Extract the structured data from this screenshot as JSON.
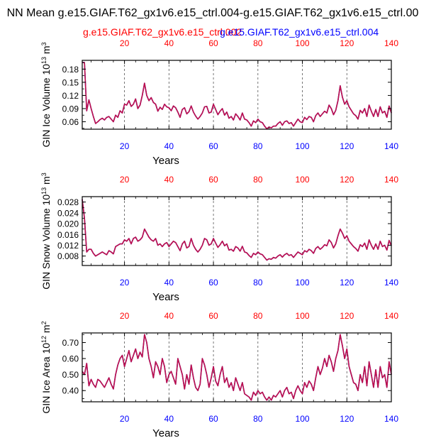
{
  "title": "NN Mean g.e15.GIAF.T62_gx1v6.e15_ctrl.004-g.e15.GIAF.T62_gx1v6.e15_ctrl.00",
  "legend": {
    "red_case": "g.e15.GIAF.T62_gx1v6.e15_ctrl.002",
    "blue_case": "g.e15.GIAF.T62_gx1v6.e15_ctrl.004"
  },
  "colors": {
    "red": "#ff0000",
    "blue": "#0000ff",
    "line_red": "#e00000",
    "line_blue": "#1a1aff",
    "line_mix": "#c8103f"
  },
  "chart_data": [
    {
      "type": "line",
      "name": "gin-ice-volume",
      "ylabel": "GIN Ice Volume 10",
      "ylabel_exp": "13",
      "ylabel_unit": "m",
      "ylabel_unit_exp": "3",
      "xlabel": "Years",
      "xlim": [
        1,
        140
      ],
      "ylim": [
        0.043,
        0.2
      ],
      "yticks": [
        "0.06",
        "0.09",
        "0.12",
        "0.15",
        "0.18"
      ],
      "ytick_values": [
        0.06,
        0.09,
        0.12,
        0.15,
        0.18
      ],
      "xticks_bottom": [
        "20",
        "40",
        "60",
        "80",
        "100",
        "120",
        "140"
      ],
      "xticks_top": [
        "20",
        "40",
        "60",
        "80",
        "100",
        "120",
        "140"
      ],
      "xtick_values": [
        20,
        40,
        60,
        80,
        100,
        120,
        140
      ],
      "series": [
        {
          "name": "g.e15.GIAF.T62_gx1v6.e15_ctrl.002",
          "values": [
            0.195,
            0.195,
            0.085,
            0.11,
            0.09,
            0.072,
            0.056,
            0.06,
            0.065,
            0.068,
            0.064,
            0.07,
            0.072,
            0.066,
            0.06,
            0.075,
            0.07,
            0.085,
            0.08,
            0.1,
            0.098,
            0.108,
            0.095,
            0.1,
            0.112,
            0.09,
            0.098,
            0.12,
            0.148,
            0.12,
            0.108,
            0.115,
            0.104,
            0.1,
            0.084,
            0.093,
            0.088,
            0.1,
            0.094,
            0.092,
            0.085,
            0.096,
            0.092,
            0.082,
            0.07,
            0.088,
            0.092,
            0.078,
            0.083,
            0.096,
            0.082,
            0.073,
            0.066,
            0.072,
            0.08,
            0.094,
            0.095,
            0.08,
            0.082,
            0.1,
            0.088,
            0.076,
            0.084,
            0.09,
            0.075,
            0.082,
            0.068,
            0.072,
            0.064,
            0.078,
            0.072,
            0.064,
            0.08,
            0.066,
            0.064,
            0.058,
            0.05,
            0.062,
            0.058,
            0.066,
            0.06,
            0.058,
            0.05,
            0.044,
            0.048,
            0.046,
            0.05,
            0.05,
            0.056,
            0.06,
            0.052,
            0.06,
            0.062,
            0.056,
            0.058,
            0.05,
            0.058,
            0.066,
            0.06,
            0.058,
            0.07,
            0.065,
            0.072,
            0.07,
            0.06,
            0.074,
            0.08,
            0.072,
            0.078,
            0.084,
            0.08,
            0.098,
            0.09,
            0.076,
            0.086,
            0.108,
            0.142,
            0.116,
            0.1,
            0.108,
            0.094,
            0.086,
            0.078,
            0.074,
            0.066,
            0.086,
            0.08,
            0.09,
            0.072,
            0.098,
            0.084,
            0.072,
            0.088,
            0.072,
            0.094,
            0.08,
            0.084,
            0.07,
            0.096,
            0.08
          ]
        }
      ]
    },
    {
      "type": "line",
      "name": "gin-snow-volume",
      "ylabel": "GIN Snow Volume 10",
      "ylabel_exp": "13",
      "ylabel_unit": "m",
      "ylabel_unit_exp": "3",
      "xlabel": "Years",
      "xlim": [
        1,
        140
      ],
      "ylim": [
        0.0045,
        0.03
      ],
      "yticks": [
        "0.008",
        "0.012",
        "0.016",
        "0.020",
        "0.024",
        "0.028"
      ],
      "ytick_values": [
        0.008,
        0.012,
        0.016,
        0.02,
        0.024,
        0.028
      ],
      "xticks_bottom": [
        "20",
        "40",
        "60",
        "80",
        "100",
        "120",
        "140"
      ],
      "xticks_top": [
        "20",
        "40",
        "60",
        "80",
        "100",
        "120",
        "140"
      ],
      "xtick_values": [
        20,
        40,
        60,
        80,
        100,
        120,
        140
      ],
      "series": [
        {
          "name": "g.e15.GIAF.T62_gx1v6.e15_ctrl.002",
          "values": [
            0.029,
            0.022,
            0.0095,
            0.0105,
            0.0105,
            0.009,
            0.008,
            0.0085,
            0.009,
            0.0095,
            0.009,
            0.0085,
            0.01,
            0.0095,
            0.0088,
            0.0115,
            0.012,
            0.0125,
            0.0125,
            0.014,
            0.0135,
            0.0145,
            0.0125,
            0.0145,
            0.015,
            0.0135,
            0.014,
            0.015,
            0.018,
            0.0165,
            0.015,
            0.014,
            0.0135,
            0.0145,
            0.012,
            0.0125,
            0.0115,
            0.0125,
            0.013,
            0.0115,
            0.0125,
            0.0135,
            0.013,
            0.0115,
            0.01,
            0.0125,
            0.0135,
            0.011,
            0.0115,
            0.0145,
            0.012,
            0.0105,
            0.0095,
            0.0105,
            0.012,
            0.0145,
            0.014,
            0.012,
            0.0125,
            0.0145,
            0.0128,
            0.0112,
            0.0122,
            0.0135,
            0.0118,
            0.0125,
            0.0102,
            0.0105,
            0.0098,
            0.0115,
            0.011,
            0.0098,
            0.0116,
            0.0095,
            0.0092,
            0.0082,
            0.0075,
            0.009,
            0.0085,
            0.0095,
            0.0088,
            0.0085,
            0.0075,
            0.0065,
            0.007,
            0.0068,
            0.0075,
            0.0072,
            0.008,
            0.0085,
            0.0076,
            0.0085,
            0.009,
            0.0082,
            0.0085,
            0.0075,
            0.0085,
            0.0095,
            0.009,
            0.0085,
            0.01,
            0.0095,
            0.0105,
            0.01,
            0.009,
            0.0108,
            0.0115,
            0.0105,
            0.0112,
            0.0122,
            0.0118,
            0.014,
            0.013,
            0.011,
            0.0125,
            0.0155,
            0.018,
            0.0165,
            0.0145,
            0.0155,
            0.0135,
            0.0125,
            0.0115,
            0.0108,
            0.0098,
            0.0122,
            0.0115,
            0.0128,
            0.0105,
            0.014,
            0.012,
            0.0105,
            0.0125,
            0.0105,
            0.0135,
            0.0115,
            0.012,
            0.0102,
            0.0138,
            0.0118
          ]
        }
      ]
    },
    {
      "type": "line",
      "name": "gin-ice-area",
      "ylabel": "GIN Ice Area 10",
      "ylabel_exp": "12",
      "ylabel_unit": "m",
      "ylabel_unit_exp": "2",
      "xlabel": "Years",
      "xlim": [
        1,
        140
      ],
      "ylim": [
        0.33,
        0.76
      ],
      "yticks": [
        "0.40",
        "0.50",
        "0.60",
        "0.70"
      ],
      "ytick_values": [
        0.4,
        0.5,
        0.6,
        0.7
      ],
      "xticks_bottom": [
        "20",
        "40",
        "60",
        "80",
        "100",
        "120",
        "140"
      ],
      "xticks_top": [
        "20",
        "40",
        "60",
        "80",
        "100",
        "120",
        "140"
      ],
      "xtick_values": [
        20,
        40,
        60,
        80,
        100,
        120,
        140
      ],
      "series": [
        {
          "name": "g.e15.GIAF.T62_gx1v6.e15_ctrl.002",
          "values": [
            0.52,
            0.5,
            0.57,
            0.43,
            0.47,
            0.44,
            0.42,
            0.47,
            0.46,
            0.44,
            0.42,
            0.45,
            0.48,
            0.44,
            0.41,
            0.5,
            0.56,
            0.6,
            0.62,
            0.55,
            0.6,
            0.65,
            0.58,
            0.62,
            0.66,
            0.6,
            0.64,
            0.61,
            0.75,
            0.7,
            0.6,
            0.55,
            0.48,
            0.58,
            0.55,
            0.5,
            0.6,
            0.55,
            0.45,
            0.5,
            0.52,
            0.48,
            0.44,
            0.6,
            0.55,
            0.5,
            0.41,
            0.5,
            0.44,
            0.56,
            0.48,
            0.42,
            0.4,
            0.44,
            0.6,
            0.56,
            0.5,
            0.42,
            0.48,
            0.55,
            0.46,
            0.43,
            0.5,
            0.55,
            0.45,
            0.48,
            0.42,
            0.45,
            0.4,
            0.48,
            0.44,
            0.4,
            0.45,
            0.38,
            0.37,
            0.36,
            0.34,
            0.39,
            0.37,
            0.4,
            0.38,
            0.39,
            0.36,
            0.34,
            0.36,
            0.34,
            0.37,
            0.36,
            0.38,
            0.4,
            0.36,
            0.4,
            0.42,
            0.38,
            0.39,
            0.35,
            0.4,
            0.43,
            0.4,
            0.38,
            0.45,
            0.42,
            0.46,
            0.44,
            0.4,
            0.48,
            0.55,
            0.5,
            0.54,
            0.6,
            0.55,
            0.62,
            0.58,
            0.52,
            0.6,
            0.65,
            0.75,
            0.68,
            0.6,
            0.66,
            0.55,
            0.5,
            0.45,
            0.44,
            0.4,
            0.5,
            0.45,
            0.55,
            0.43,
            0.58,
            0.5,
            0.42,
            0.53,
            0.42,
            0.55,
            0.48,
            0.5,
            0.42,
            0.58,
            0.5
          ]
        }
      ]
    }
  ]
}
